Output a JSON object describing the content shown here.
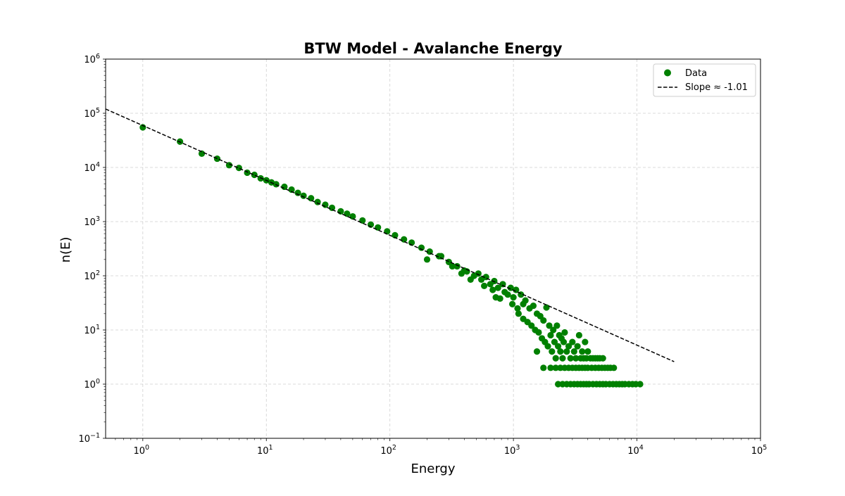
{
  "chart_data": {
    "type": "scatter",
    "title": "BTW Model - Avalanche Energy",
    "xlabel": "Energy",
    "ylabel": "n(E)",
    "xscale": "log",
    "yscale": "log",
    "xlim": [
      0.5,
      100000
    ],
    "ylim": [
      0.1,
      1000000
    ],
    "grid": true,
    "legend_position": "upper right",
    "x_ticks": [
      {
        "base": "10",
        "exp": "0"
      },
      {
        "base": "10",
        "exp": "1"
      },
      {
        "base": "10",
        "exp": "2"
      },
      {
        "base": "10",
        "exp": "3"
      },
      {
        "base": "10",
        "exp": "4"
      },
      {
        "base": "10",
        "exp": "5"
      }
    ],
    "y_ticks": [
      {
        "base": "10",
        "exp": "−1"
      },
      {
        "base": "10",
        "exp": "0"
      },
      {
        "base": "10",
        "exp": "1"
      },
      {
        "base": "10",
        "exp": "2"
      },
      {
        "base": "10",
        "exp": "3"
      },
      {
        "base": "10",
        "exp": "4"
      },
      {
        "base": "10",
        "exp": "5"
      },
      {
        "base": "10",
        "exp": "6"
      }
    ],
    "series": [
      {
        "name": "Data",
        "kind": "scatter",
        "color": "#008000",
        "points": [
          [
            1,
            55000
          ],
          [
            2,
            30000
          ],
          [
            3,
            18000
          ],
          [
            4,
            14500
          ],
          [
            5,
            11000
          ],
          [
            6,
            9800
          ],
          [
            7,
            8000
          ],
          [
            8,
            7300
          ],
          [
            9,
            6300
          ],
          [
            10,
            5800
          ],
          [
            11,
            5300
          ],
          [
            12,
            4900
          ],
          [
            14,
            4400
          ],
          [
            16,
            3900
          ],
          [
            18,
            3400
          ],
          [
            20,
            3000
          ],
          [
            23,
            2700
          ],
          [
            26,
            2300
          ],
          [
            30,
            2050
          ],
          [
            34,
            1800
          ],
          [
            40,
            1550
          ],
          [
            45,
            1400
          ],
          [
            50,
            1250
          ],
          [
            60,
            1050
          ],
          [
            70,
            880
          ],
          [
            80,
            780
          ],
          [
            95,
            660
          ],
          [
            110,
            560
          ],
          [
            130,
            470
          ],
          [
            150,
            410
          ],
          [
            180,
            330
          ],
          [
            210,
            280
          ],
          [
            250,
            230
          ],
          [
            300,
            180
          ],
          [
            350,
            150
          ],
          [
            400,
            125
          ],
          [
            480,
            100
          ],
          [
            550,
            85
          ],
          [
            650,
            70
          ],
          [
            750,
            60
          ],
          [
            850,
            50
          ],
          [
            1000,
            40
          ],
          [
            1200,
            30
          ],
          [
            200,
            200
          ],
          [
            260,
            230
          ],
          [
            320,
            150
          ],
          [
            380,
            110
          ],
          [
            420,
            120
          ],
          [
            450,
            85
          ],
          [
            520,
            110
          ],
          [
            580,
            65
          ],
          [
            600,
            95
          ],
          [
            680,
            55
          ],
          [
            700,
            80
          ],
          [
            720,
            40
          ],
          [
            780,
            38
          ],
          [
            820,
            70
          ],
          [
            900,
            45
          ],
          [
            950,
            60
          ],
          [
            980,
            30
          ],
          [
            1050,
            55
          ],
          [
            1080,
            25
          ],
          [
            1100,
            20
          ],
          [
            1150,
            45
          ],
          [
            1200,
            16
          ],
          [
            1250,
            35
          ],
          [
            1300,
            14
          ],
          [
            1350,
            25
          ],
          [
            1400,
            12
          ],
          [
            1450,
            28
          ],
          [
            1500,
            10
          ],
          [
            1550,
            20
          ],
          [
            1600,
            9
          ],
          [
            1650,
            18
          ],
          [
            1700,
            7
          ],
          [
            1750,
            15
          ],
          [
            1800,
            6
          ],
          [
            1850,
            26
          ],
          [
            1900,
            5
          ],
          [
            1950,
            12
          ],
          [
            2000,
            8
          ],
          [
            2050,
            4
          ],
          [
            2100,
            10
          ],
          [
            2150,
            6
          ],
          [
            2200,
            3
          ],
          [
            2250,
            12
          ],
          [
            2300,
            5
          ],
          [
            2350,
            8
          ],
          [
            2400,
            4
          ],
          [
            2450,
            7
          ],
          [
            2500,
            3
          ],
          [
            2550,
            6
          ],
          [
            2600,
            9
          ],
          [
            2700,
            4
          ],
          [
            2800,
            5
          ],
          [
            2900,
            3
          ],
          [
            3000,
            6
          ],
          [
            3100,
            4
          ],
          [
            3200,
            3
          ],
          [
            3300,
            5
          ],
          [
            3400,
            8
          ],
          [
            3500,
            3
          ],
          [
            3600,
            4
          ],
          [
            3700,
            3
          ],
          [
            3800,
            6
          ],
          [
            3900,
            3
          ],
          [
            4000,
            4
          ],
          [
            4200,
            3
          ],
          [
            4400,
            3
          ],
          [
            4600,
            3
          ],
          [
            4800,
            3
          ],
          [
            5000,
            3
          ],
          [
            5300,
            3
          ],
          [
            1550,
            4
          ],
          [
            1750,
            2
          ],
          [
            2000,
            2
          ],
          [
            2200,
            2
          ],
          [
            2400,
            2
          ],
          [
            2600,
            2
          ],
          [
            2800,
            2
          ],
          [
            3000,
            2
          ],
          [
            3200,
            2
          ],
          [
            3400,
            2
          ],
          [
            3600,
            2
          ],
          [
            3800,
            2
          ],
          [
            4000,
            2
          ],
          [
            4300,
            2
          ],
          [
            4600,
            2
          ],
          [
            4900,
            2
          ],
          [
            5200,
            2
          ],
          [
            5500,
            2
          ],
          [
            5800,
            2
          ],
          [
            6100,
            2
          ],
          [
            6500,
            2
          ],
          [
            2300,
            1
          ],
          [
            2500,
            1
          ],
          [
            2700,
            1
          ],
          [
            2900,
            1
          ],
          [
            3100,
            1
          ],
          [
            3300,
            1
          ],
          [
            3500,
            1
          ],
          [
            3700,
            1
          ],
          [
            3900,
            1
          ],
          [
            4100,
            1
          ],
          [
            4400,
            1
          ],
          [
            4700,
            1
          ],
          [
            5000,
            1
          ],
          [
            5300,
            1
          ],
          [
            5600,
            1
          ],
          [
            6000,
            1
          ],
          [
            6400,
            1
          ],
          [
            6800,
            1
          ],
          [
            7200,
            1
          ],
          [
            7600,
            1
          ],
          [
            8000,
            1
          ],
          [
            8600,
            1
          ],
          [
            9200,
            1
          ],
          [
            9800,
            1
          ],
          [
            10600,
            1
          ]
        ]
      },
      {
        "name": "Slope ≈ -1.01",
        "kind": "line",
        "color": "#000000",
        "dash": "dashed",
        "points": [
          [
            0.5,
            120000
          ],
          [
            20000,
            2.6
          ]
        ]
      }
    ]
  }
}
